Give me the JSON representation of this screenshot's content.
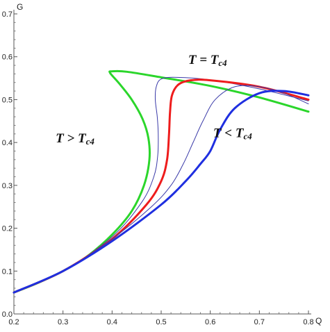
{
  "chart_data": {
    "type": "line",
    "title": "",
    "xlabel": "Q",
    "ylabel": "G",
    "xlim": [
      0.2,
      0.8
    ],
    "ylim": [
      0.0,
      0.7
    ],
    "x_ticks": [
      "0.2",
      "0.3",
      "0.4",
      "0.5",
      "0.6",
      "0.7",
      "0.8"
    ],
    "y_ticks": [
      "0.0",
      "0.1",
      "0.2",
      "0.3",
      "0.4",
      "0.5",
      "0.6",
      "0.7"
    ],
    "grid": false,
    "legend": "none",
    "annotations": [
      {
        "main": "T = T",
        "sub": "c4",
        "x": 0.555,
        "y": 0.583
      },
      {
        "main": "T > T",
        "sub": "c4",
        "x": 0.285,
        "y": 0.4
      },
      {
        "main": "T < T",
        "sub": "c4",
        "x": 0.606,
        "y": 0.412
      }
    ],
    "series": [
      {
        "color": "#2bd62b",
        "width": 3,
        "x": [
          0.2,
          0.25,
          0.3,
          0.35,
          0.4,
          0.44,
          0.465,
          0.476,
          0.474,
          0.462,
          0.44,
          0.415,
          0.396,
          0.4,
          0.43,
          0.5,
          0.6,
          0.7,
          0.8
        ],
        "y": [
          0.05,
          0.073,
          0.1,
          0.135,
          0.185,
          0.24,
          0.3,
          0.36,
          0.41,
          0.455,
          0.5,
          0.537,
          0.562,
          0.566,
          0.565,
          0.552,
          0.532,
          0.505,
          0.472
        ]
      },
      {
        "color": "#3a3aa8",
        "width": 1,
        "x": [
          0.2,
          0.3,
          0.4,
          0.46,
          0.485,
          0.493,
          0.494,
          0.492,
          0.488,
          0.49,
          0.5,
          0.53,
          0.6,
          0.7,
          0.8
        ],
        "y": [
          0.05,
          0.1,
          0.18,
          0.26,
          0.32,
          0.37,
          0.42,
          0.46,
          0.5,
          0.53,
          0.548,
          0.552,
          0.546,
          0.525,
          0.497
        ]
      },
      {
        "color": "#ee1c1c",
        "width": 3,
        "x": [
          0.2,
          0.3,
          0.4,
          0.47,
          0.5,
          0.512,
          0.516,
          0.518,
          0.522,
          0.535,
          0.56,
          0.6,
          0.7,
          0.8
        ],
        "y": [
          0.05,
          0.1,
          0.175,
          0.255,
          0.31,
          0.36,
          0.42,
          0.47,
          0.51,
          0.535,
          0.545,
          0.545,
          0.53,
          0.5
        ]
      },
      {
        "color": "#3a3aa8",
        "width": 1,
        "x": [
          0.2,
          0.3,
          0.4,
          0.48,
          0.52,
          0.545,
          0.565,
          0.585,
          0.61,
          0.65,
          0.7,
          0.75,
          0.8
        ],
        "y": [
          0.05,
          0.1,
          0.175,
          0.25,
          0.3,
          0.35,
          0.4,
          0.45,
          0.5,
          0.53,
          0.53,
          0.515,
          0.49
        ]
      },
      {
        "color": "#1f2fe0",
        "width": 3,
        "x": [
          0.2,
          0.3,
          0.4,
          0.5,
          0.55,
          0.58,
          0.6,
          0.62,
          0.65,
          0.7,
          0.75,
          0.8
        ],
        "y": [
          0.05,
          0.1,
          0.17,
          0.255,
          0.31,
          0.35,
          0.38,
          0.43,
          0.48,
          0.515,
          0.52,
          0.51
        ]
      }
    ]
  }
}
